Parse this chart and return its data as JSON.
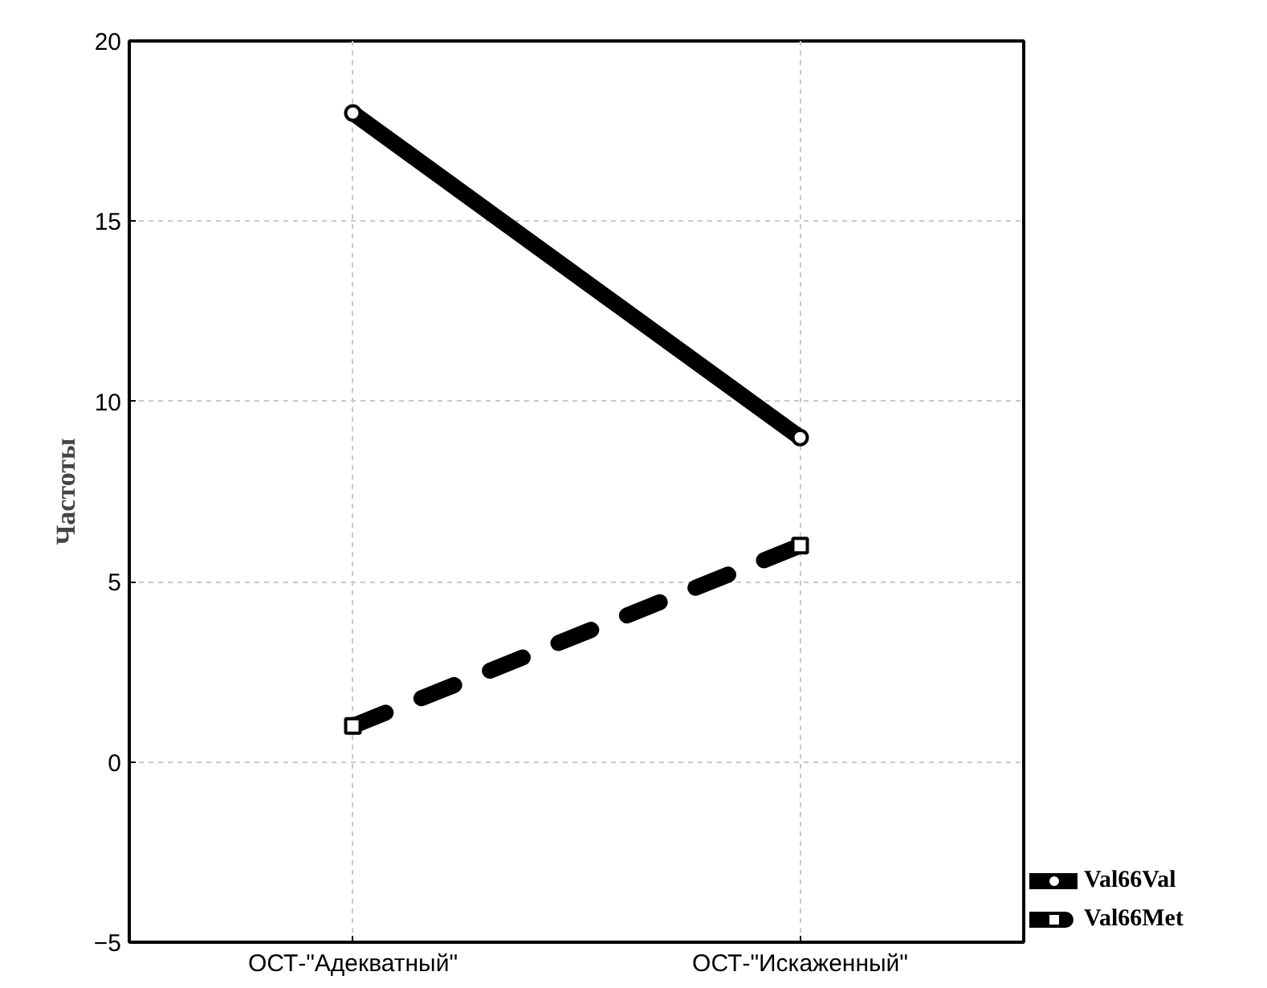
{
  "chart_data": {
    "type": "line",
    "ylabel": "Частоты",
    "categories": [
      "ОСТ-\"Адекватный\"",
      "ОСТ-\"Искаженный\""
    ],
    "series": [
      {
        "name": "Val66Val",
        "color": "#000000",
        "values": [
          18,
          9
        ],
        "line_style": "solid",
        "marker": "circle"
      },
      {
        "name": "Val66Met",
        "color": "#000000",
        "values": [
          1,
          6
        ],
        "line_style": "dashed",
        "marker": "square"
      }
    ],
    "ylim": [
      -5,
      20
    ],
    "yticks": [
      -5,
      0,
      5,
      10,
      15,
      20
    ],
    "grid": true,
    "legend": "bottom right"
  }
}
